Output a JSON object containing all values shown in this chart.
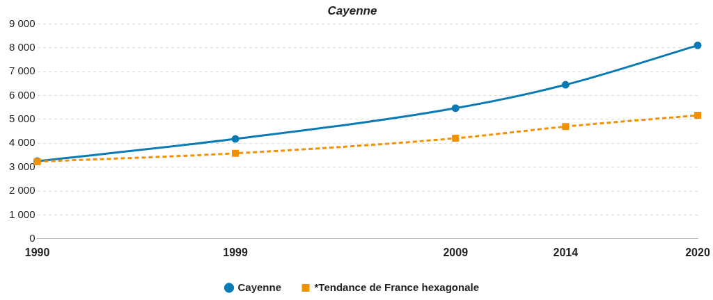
{
  "chart_data": {
    "type": "line",
    "title": "Cayenne",
    "x": [
      1990,
      1999,
      2009,
      2014,
      2020
    ],
    "xlim": [
      1990,
      2020
    ],
    "xticks": [
      1990,
      1999,
      2009,
      2014,
      2020
    ],
    "ylim": [
      0,
      9000
    ],
    "yticks": [
      {
        "value": 0,
        "label": "0"
      },
      {
        "value": 1000,
        "label": "1 000"
      },
      {
        "value": 2000,
        "label": "2 000"
      },
      {
        "value": 3000,
        "label": "3 000"
      },
      {
        "value": 4000,
        "label": "4 000"
      },
      {
        "value": 5000,
        "label": "5 000"
      },
      {
        "value": 6000,
        "label": "6 000"
      },
      {
        "value": 7000,
        "label": "7 000"
      },
      {
        "value": 8000,
        "label": "8 000"
      },
      {
        "value": 9000,
        "label": "9 000"
      }
    ],
    "series": [
      {
        "name": "Cayenne",
        "color": "#0a7ab3",
        "values": [
          3250,
          4180,
          5470,
          6450,
          8100
        ],
        "marker": "circle",
        "line_style": "solid"
      },
      {
        "name": "*Tendance de France hexagonale",
        "color": "#f39000",
        "values": [
          3230,
          3580,
          4210,
          4700,
          5170
        ],
        "marker": "square",
        "line_style": "dashed"
      }
    ],
    "grid": "y",
    "legend": "bottom"
  }
}
